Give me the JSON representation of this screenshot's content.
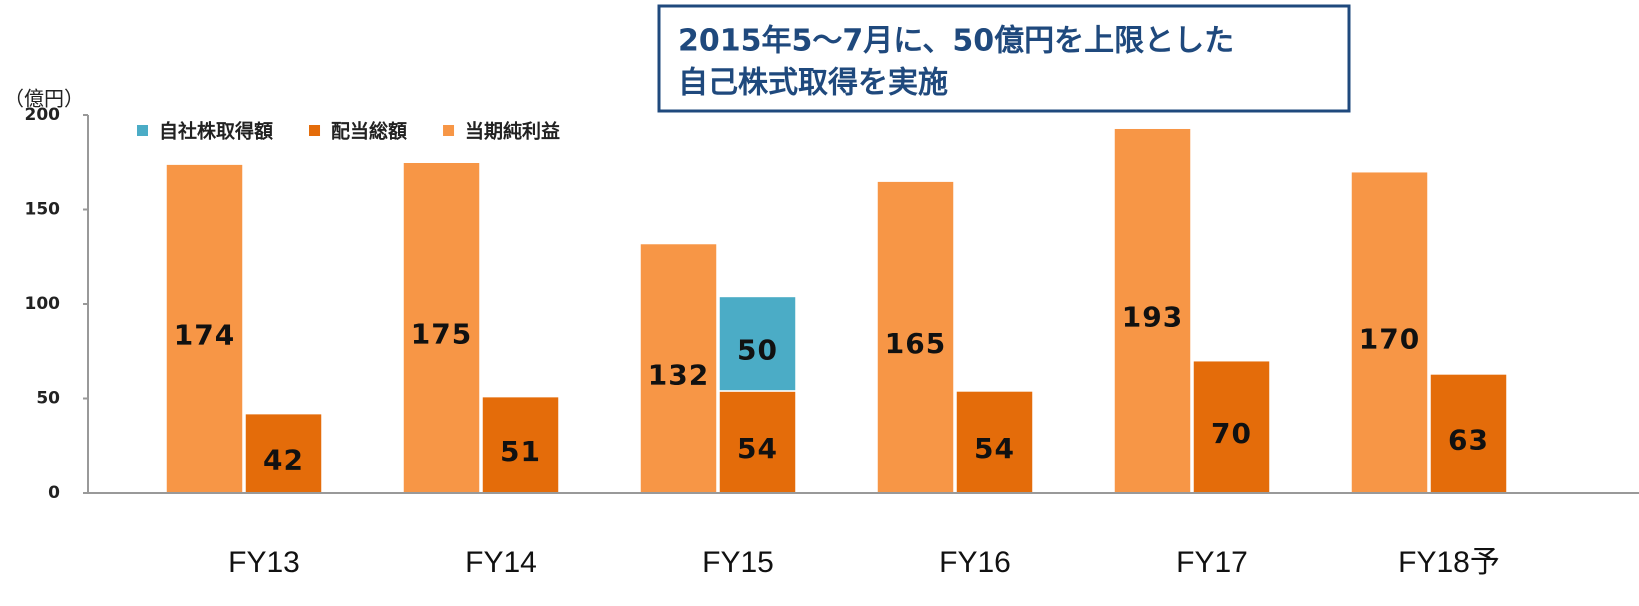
{
  "chart_data": {
    "type": "bar",
    "y_label": "（億円）",
    "annotation": [
      "2015年5～7月に、50億円を上限とした",
      "自己株式取得を実施"
    ],
    "categories": [
      "FY13",
      "FY14",
      "FY15",
      "FY16",
      "FY17",
      "FY18予"
    ],
    "series": [
      {
        "name": "自社株取得額",
        "color": "#4bacc6",
        "values": [
          null,
          null,
          50,
          null,
          null,
          null
        ]
      },
      {
        "name": "配当総額",
        "color": "#e46c0a",
        "values": [
          42,
          51,
          54,
          54,
          70,
          63
        ]
      },
      {
        "name": "当期純利益",
        "color": "#f79646",
        "values": [
          174,
          175,
          132,
          165,
          193,
          170
        ]
      }
    ],
    "ylim": [
      0,
      200
    ],
    "yticks": [
      0,
      50,
      100,
      150,
      200
    ],
    "grid": false,
    "legend": "top-left"
  }
}
